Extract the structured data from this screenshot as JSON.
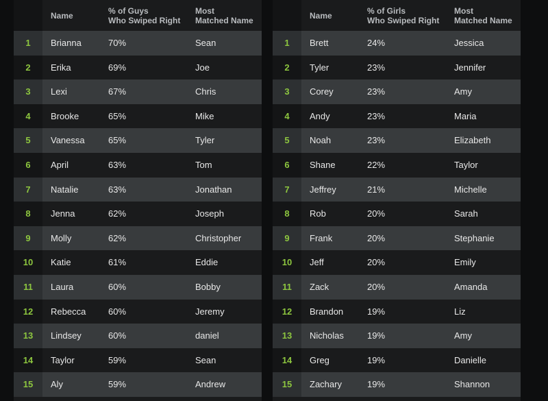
{
  "tables": [
    {
      "headers": {
        "name": "Name",
        "pct_line1": "% of Guys",
        "pct_line2": "Who Swiped Right",
        "match_line1": "Most",
        "match_line2": "Matched Name"
      },
      "rows": [
        {
          "rank": "1",
          "name": "Brianna",
          "pct": "70%",
          "match": "Sean"
        },
        {
          "rank": "2",
          "name": "Erika",
          "pct": "69%",
          "match": "Joe"
        },
        {
          "rank": "3",
          "name": "Lexi",
          "pct": "67%",
          "match": "Chris"
        },
        {
          "rank": "4",
          "name": "Brooke",
          "pct": "65%",
          "match": "Mike"
        },
        {
          "rank": "5",
          "name": "Vanessa",
          "pct": "65%",
          "match": "Tyler"
        },
        {
          "rank": "6",
          "name": "April",
          "pct": "63%",
          "match": "Tom"
        },
        {
          "rank": "7",
          "name": "Natalie",
          "pct": "63%",
          "match": "Jonathan"
        },
        {
          "rank": "8",
          "name": "Jenna",
          "pct": "62%",
          "match": "Joseph"
        },
        {
          "rank": "9",
          "name": "Molly",
          "pct": "62%",
          "match": "Christopher"
        },
        {
          "rank": "10",
          "name": "Katie",
          "pct": "61%",
          "match": "Eddie"
        },
        {
          "rank": "11",
          "name": "Laura",
          "pct": "60%",
          "match": "Bobby"
        },
        {
          "rank": "12",
          "name": "Rebecca",
          "pct": "60%",
          "match": "Jeremy"
        },
        {
          "rank": "13",
          "name": "Lindsey",
          "pct": "60%",
          "match": "daniel"
        },
        {
          "rank": "14",
          "name": "Taylor",
          "pct": "59%",
          "match": "Sean"
        },
        {
          "rank": "15",
          "name": "Aly",
          "pct": "59%",
          "match": "Andrew"
        }
      ]
    },
    {
      "headers": {
        "name": "Name",
        "pct_line1": "% of Girls",
        "pct_line2": "Who Swiped Right",
        "match_line1": "Most",
        "match_line2": "Matched Name"
      },
      "rows": [
        {
          "rank": "1",
          "name": "Brett",
          "pct": "24%",
          "match": "Jessica"
        },
        {
          "rank": "2",
          "name": "Tyler",
          "pct": "23%",
          "match": "Jennifer"
        },
        {
          "rank": "3",
          "name": "Corey",
          "pct": "23%",
          "match": "Amy"
        },
        {
          "rank": "4",
          "name": "Andy",
          "pct": "23%",
          "match": "Maria"
        },
        {
          "rank": "5",
          "name": "Noah",
          "pct": "23%",
          "match": "Elizabeth"
        },
        {
          "rank": "6",
          "name": "Shane",
          "pct": "22%",
          "match": "Taylor"
        },
        {
          "rank": "7",
          "name": "Jeffrey",
          "pct": "21%",
          "match": "Michelle"
        },
        {
          "rank": "8",
          "name": "Rob",
          "pct": "20%",
          "match": "Sarah"
        },
        {
          "rank": "9",
          "name": "Frank",
          "pct": "20%",
          "match": "Stephanie"
        },
        {
          "rank": "10",
          "name": "Jeff",
          "pct": "20%",
          "match": "Emily"
        },
        {
          "rank": "11",
          "name": "Zack",
          "pct": "20%",
          "match": "Amanda"
        },
        {
          "rank": "12",
          "name": "Brandon",
          "pct": "19%",
          "match": "Liz"
        },
        {
          "rank": "13",
          "name": "Nicholas",
          "pct": "19%",
          "match": "Amy"
        },
        {
          "rank": "14",
          "name": "Greg",
          "pct": "19%",
          "match": "Danielle"
        },
        {
          "rank": "15",
          "name": "Zachary",
          "pct": "19%",
          "match": "Shannon"
        }
      ]
    }
  ],
  "colors": {
    "rank_accent": "#8dc63f",
    "row_light": "#383b3d",
    "row_dark": "#1a1b1c"
  }
}
